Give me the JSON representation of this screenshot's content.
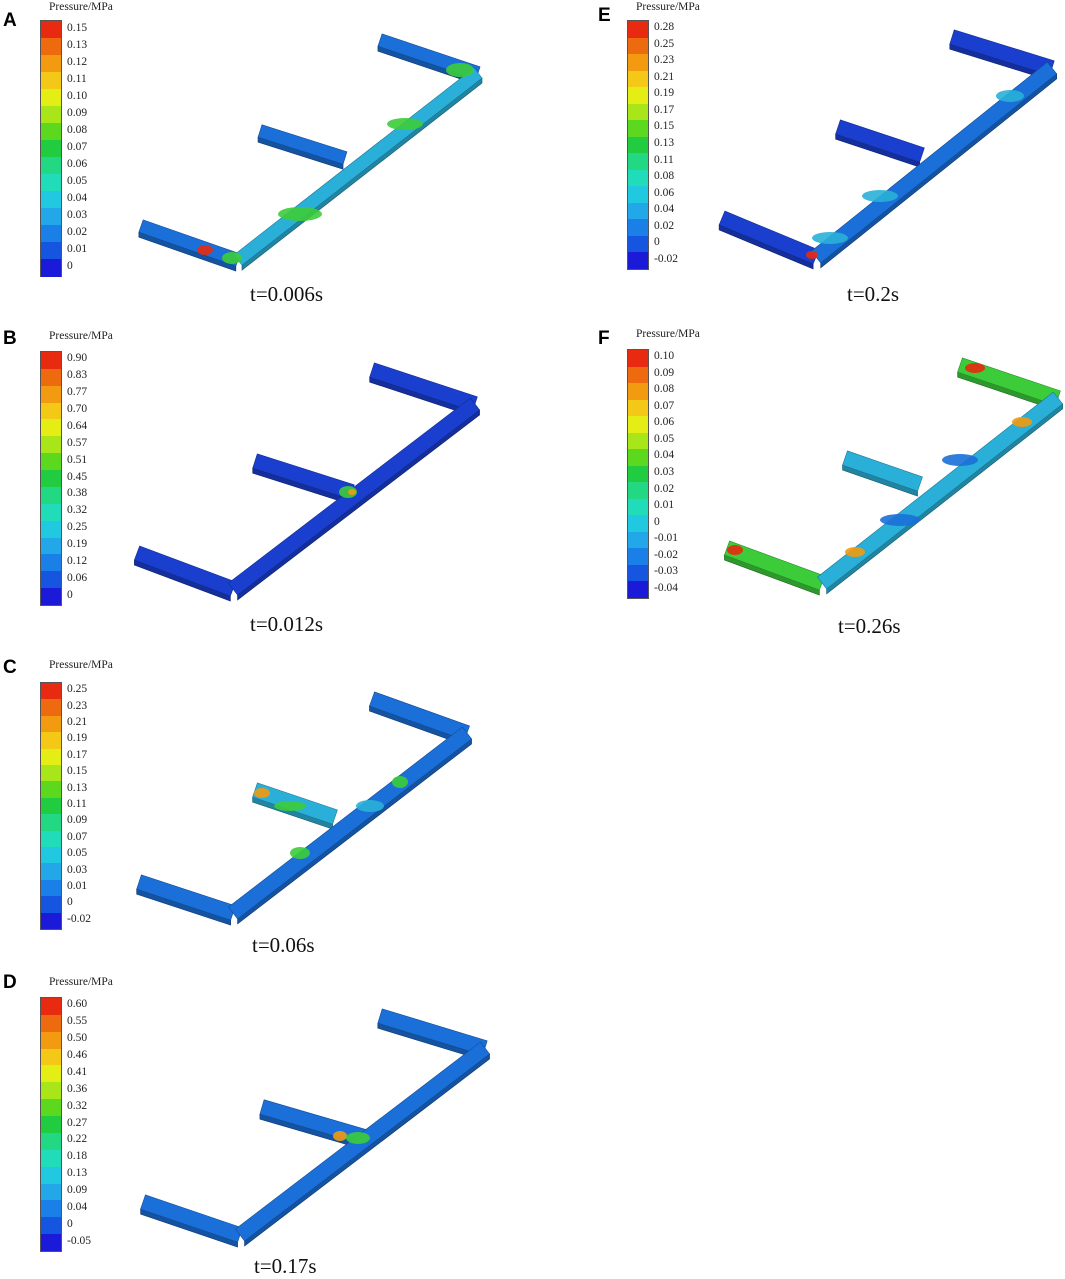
{
  "legend_title": "Pressure/MPa",
  "palette": [
    "#1a1ad8",
    "#1655e0",
    "#1b7fe8",
    "#22a8e8",
    "#20c8e0",
    "#20dcb8",
    "#22d883",
    "#22cc40",
    "#5cd81e",
    "#a8e61a",
    "#e4ee14",
    "#f4c816",
    "#f29a10",
    "#ee6a0e",
    "#e82a10"
  ],
  "panels": [
    {
      "letter": "A",
      "caption": "t=0.006s",
      "legend": [
        "0.15",
        "0.13",
        "0.12",
        "0.11",
        "0.10",
        "0.09",
        "0.08",
        "0.07",
        "0.06",
        "0.05",
        "0.04",
        "0.03",
        "0.02",
        "0.01",
        "0"
      ]
    },
    {
      "letter": "B",
      "caption": "t=0.012s",
      "legend": [
        "0.90",
        "0.83",
        "0.77",
        "0.70",
        "0.64",
        "0.57",
        "0.51",
        "0.45",
        "0.38",
        "0.32",
        "0.25",
        "0.19",
        "0.12",
        "0.06",
        "0"
      ]
    },
    {
      "letter": "C",
      "caption": "t=0.06s",
      "legend": [
        "0.25",
        "0.23",
        "0.21",
        "0.19",
        "0.17",
        "0.15",
        "0.13",
        "0.11",
        "0.09",
        "0.07",
        "0.05",
        "0.03",
        "0.01",
        "0",
        "-0.02"
      ]
    },
    {
      "letter": "D",
      "caption": "t=0.17s",
      "legend": [
        "0.60",
        "0.55",
        "0.50",
        "0.46",
        "0.41",
        "0.36",
        "0.32",
        "0.27",
        "0.22",
        "0.18",
        "0.13",
        "0.09",
        "0.04",
        "0",
        "-0.05"
      ]
    },
    {
      "letter": "E",
      "caption": "t=0.2s",
      "legend": [
        "0.28",
        "0.25",
        "0.23",
        "0.21",
        "0.19",
        "0.17",
        "0.15",
        "0.13",
        "0.11",
        "0.08",
        "0.06",
        "0.04",
        "0.02",
        "0",
        "-0.02"
      ]
    },
    {
      "letter": "F",
      "caption": "t=0.26s",
      "legend": [
        "0.10",
        "0.09",
        "0.08",
        "0.07",
        "0.06",
        "0.05",
        "0.04",
        "0.03",
        "0.02",
        "0.01",
        "0",
        "-0.01",
        "-0.02",
        "-0.03",
        "-0.04"
      ]
    }
  ]
}
